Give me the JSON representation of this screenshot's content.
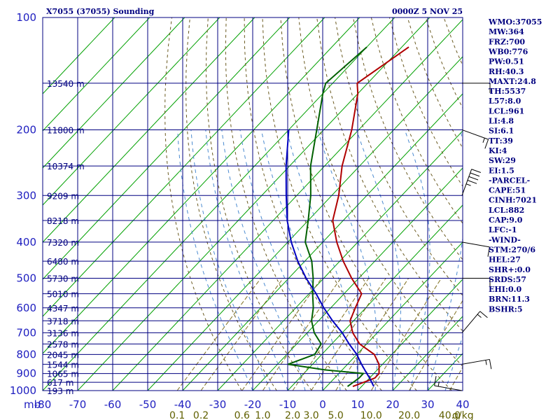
{
  "header": {
    "station": "X7055 (37055) Sounding",
    "datetime": "0000Z  5 NOV 25"
  },
  "chart_data": {
    "type": "line",
    "diagram": "skew-t log-p",
    "p_ticks": [
      100,
      200,
      300,
      400,
      500,
      600,
      700,
      800,
      900,
      1000
    ],
    "p_range": [
      100,
      1000
    ],
    "p_unit_label": "mb",
    "t_ticks": [
      -80,
      -70,
      -60,
      -50,
      -40,
      -30,
      -20,
      -10,
      0,
      10,
      20,
      30,
      40
    ],
    "t_tick_labels": [
      "-80",
      "-70",
      "-60",
      "-50",
      "-40",
      "-30",
      "-20",
      "-10",
      "0",
      "10",
      "20",
      "30",
      "40"
    ],
    "mixing_ratio_labels": [
      "0.1",
      "0.2",
      "0.6",
      "1.0",
      "2.0",
      "3.0",
      "5.0",
      "10.0",
      "20.0",
      "40.0"
    ],
    "mixing_ratio_unit": "g/kg",
    "height_labels": [
      {
        "p": 150,
        "label": "13540 m"
      },
      {
        "p": 200,
        "label": "11800 m"
      },
      {
        "p": 250,
        "label": "10374 m"
      },
      {
        "p": 300,
        "label": "9209 m"
      },
      {
        "p": 350,
        "label": "8218 m"
      },
      {
        "p": 400,
        "label": "7320 m"
      },
      {
        "p": 450,
        "label": "6480 m"
      },
      {
        "p": 500,
        "label": "5730 m"
      },
      {
        "p": 550,
        "label": "5010 m"
      },
      {
        "p": 600,
        "label": "4347 m"
      },
      {
        "p": 650,
        "label": "3718 m"
      },
      {
        "p": 700,
        "label": "3136 m"
      },
      {
        "p": 750,
        "label": "2578 m"
      },
      {
        "p": 800,
        "label": "2045 m"
      },
      {
        "p": 850,
        "label": "1544 m"
      },
      {
        "p": 900,
        "label": "1065 m"
      },
      {
        "p": 950,
        "label": "617 m"
      },
      {
        "p": 1000,
        "label": "193 m"
      }
    ],
    "series": [
      {
        "role": "temperature",
        "color": "#b00000",
        "points": [
          [
            975,
            7.5
          ],
          [
            925,
            11.5
          ],
          [
            900,
            11.5
          ],
          [
            850,
            9
          ],
          [
            800,
            5
          ],
          [
            750,
            -2
          ],
          [
            700,
            -7
          ],
          [
            650,
            -11
          ],
          [
            600,
            -13
          ],
          [
            550,
            -15
          ],
          [
            500,
            -22
          ],
          [
            450,
            -29
          ],
          [
            400,
            -36
          ],
          [
            350,
            -43
          ],
          [
            300,
            -48
          ],
          [
            250,
            -55
          ],
          [
            200,
            -62
          ],
          [
            160,
            -70
          ],
          [
            150,
            -73
          ],
          [
            120,
            -68
          ]
        ]
      },
      {
        "role": "dewpoint",
        "color": "#006000",
        "points": [
          [
            975,
            6
          ],
          [
            925,
            7
          ],
          [
            900,
            7
          ],
          [
            880,
            -5
          ],
          [
            850,
            -17
          ],
          [
            800,
            -12
          ],
          [
            750,
            -13
          ],
          [
            700,
            -18
          ],
          [
            650,
            -22
          ],
          [
            600,
            -25
          ],
          [
            550,
            -29
          ],
          [
            500,
            -33
          ],
          [
            450,
            -38
          ],
          [
            400,
            -45
          ],
          [
            350,
            -50
          ],
          [
            300,
            -56
          ],
          [
            250,
            -64
          ],
          [
            200,
            -72
          ],
          [
            160,
            -80
          ],
          [
            150,
            -82
          ],
          [
            120,
            -80
          ]
        ]
      },
      {
        "role": "parcel",
        "color": "#0000c0",
        "points": [
          [
            975,
            13.5
          ],
          [
            925,
            10
          ],
          [
            900,
            8
          ],
          [
            850,
            4
          ],
          [
            800,
            0
          ],
          [
            750,
            -5
          ],
          [
            700,
            -10
          ],
          [
            650,
            -16
          ],
          [
            600,
            -22
          ],
          [
            550,
            -28
          ],
          [
            500,
            -35
          ],
          [
            450,
            -42
          ],
          [
            400,
            -49
          ],
          [
            350,
            -56
          ],
          [
            300,
            -63
          ],
          [
            250,
            -71
          ],
          [
            200,
            -80
          ]
        ]
      }
    ],
    "wind_barbs": [
      {
        "p": 150,
        "dir": 270,
        "speed": 10
      },
      {
        "p": 200,
        "dir": 290,
        "speed": 5
      },
      {
        "p": 300,
        "dir": 200,
        "speed": 35
      },
      {
        "p": 400,
        "dir": 280,
        "speed": 10
      },
      {
        "p": 500,
        "dir": 270,
        "speed": 10
      },
      {
        "p": 700,
        "dir": 220,
        "speed": 5
      },
      {
        "p": 850,
        "dir": 260,
        "speed": 5
      },
      {
        "p": 1000,
        "dir": 100,
        "speed": 5
      }
    ],
    "indices": [
      "WMO:37055",
      "MW:364",
      "FRZ:700",
      "WB0:776",
      "PW:0.51",
      "RH:40.3",
      "MAXT:24.8",
      "TH:5537",
      "L57:8.0",
      "LCL:961",
      "LI:4.8",
      "SI:6.1",
      "TT:39",
      "KI:4",
      "SW:29",
      "EI:1.5",
      "-PARCEL-",
      "CAPE:51",
      "CINH:7021",
      "LCL:882",
      "CAP:9.0",
      "LFC:-1",
      "-WIND-",
      "STM:270/6",
      "HEL:27",
      "SHR+:0.0",
      "SRDS:57",
      "EHI:0.0",
      "BRN:11.3",
      "BSHR:5"
    ],
    "colors": {
      "grid": "#000080",
      "isotherm": "#00a000",
      "dry_adiabat": "#6a5a20",
      "moist_adiabat": "#4a8ad0",
      "mixing_ratio": "#807020"
    }
  }
}
